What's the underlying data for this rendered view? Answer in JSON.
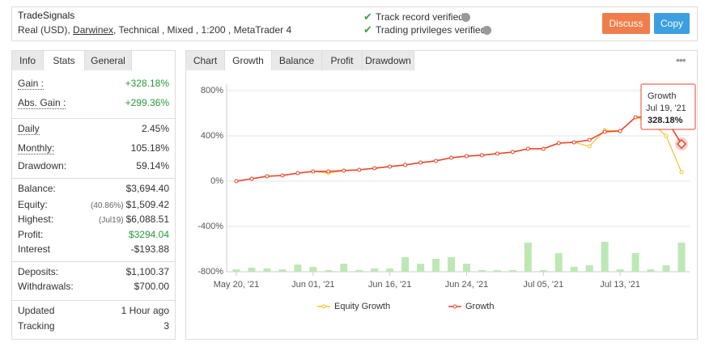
{
  "header": {
    "title": "TradeSignals",
    "account_prefix": "Real (USD),",
    "broker": "Darwinex",
    "account_suffix": ", Technical , Mixed , 1:200 , MetaTrader 4",
    "verifications": [
      "Track record verified",
      "Trading privileges verified"
    ],
    "buttons": [
      "Discuss",
      "Copy"
    ]
  },
  "left_tabs": {
    "items": [
      "Info",
      "Stats",
      "General"
    ],
    "active": 1
  },
  "stats": [
    [
      {
        "label": "Gain :",
        "value": "+328.18%",
        "color": "#2a9a3a",
        "underline": true
      },
      {
        "label": "Abs. Gain :",
        "value": "+299.36%",
        "color": "#2a9a3a",
        "underline": true
      }
    ],
    [
      {
        "label": "Daily",
        "value": "2.45%",
        "underline": true
      },
      {
        "label": "Monthly:",
        "value": "105.18%",
        "underline": true
      },
      {
        "label": "Drawdown:",
        "value": "59.14%"
      }
    ],
    [
      {
        "label": "Balance:",
        "value": "$3,694.40"
      },
      {
        "label": "Equity:",
        "note": "(40.86%)",
        "value": "$1,509.42"
      },
      {
        "label": "Highest:",
        "note": "(Jul19)",
        "value": "$6,088.51"
      },
      {
        "label": "Profit:",
        "value": "$3294.04",
        "color": "#2a9a3a"
      },
      {
        "label": "Interest",
        "value": "-$193.88"
      }
    ],
    [
      {
        "label": "Deposits:",
        "value": "$1,100.37"
      },
      {
        "label": "Withdrawals:",
        "value": "$700.00"
      }
    ],
    [
      {
        "label": "Updated",
        "value": "1 Hour ago"
      },
      {
        "label": "Tracking",
        "value": "3"
      }
    ]
  ],
  "chart_tabs": {
    "items": [
      "Chart",
      "Growth",
      "Balance",
      "Profit",
      "Drawdown"
    ],
    "active": 1
  },
  "chart_data": {
    "type": "line",
    "categories": [
      "May 20, '21",
      null,
      null,
      null,
      null,
      "Jun 01, '21",
      null,
      null,
      null,
      null,
      "Jun 16, '21",
      null,
      null,
      null,
      null,
      "Jun 24, '21",
      null,
      null,
      null,
      null,
      "Jul 05, '21",
      null,
      null,
      null,
      null,
      "Jul 13, '21",
      null,
      null,
      null,
      null
    ],
    "ylim": [
      -800,
      800
    ],
    "yticks": [
      {
        "value": 800,
        "label": "800%"
      },
      {
        "value": 400,
        "label": "400%"
      },
      {
        "value": 0,
        "label": "0%"
      },
      {
        "value": -400,
        "label": "-400%"
      },
      {
        "value": -800,
        "label": "-800%"
      }
    ],
    "grid": true,
    "series": [
      {
        "name": "Equity Growth",
        "color": "#f5c02c",
        "values": [
          0,
          21,
          43,
          50,
          71,
          86,
          71,
          93,
          100,
          114,
          129,
          143,
          164,
          179,
          207,
          221,
          229,
          243,
          257,
          286,
          286,
          336,
          343,
          307,
          450,
          443,
          564,
          520,
          400,
          79
        ]
      },
      {
        "name": "Growth",
        "color": "#e8452c",
        "values": [
          0,
          21,
          43,
          50,
          71,
          86,
          86,
          93,
          100,
          114,
          129,
          143,
          164,
          179,
          207,
          221,
          229,
          243,
          257,
          286,
          286,
          336,
          343,
          364,
          436,
          443,
          564,
          571,
          550,
          328.18
        ]
      }
    ],
    "bars": {
      "color": "#bde8b5",
      "values": [
        21,
        36,
        29,
        21,
        64,
        43,
        14,
        71,
        14,
        29,
        29,
        129,
        71,
        114,
        129,
        71,
        14,
        14,
        14,
        257,
        14,
        164,
        43,
        57,
        264,
        21,
        164,
        21,
        57,
        257
      ]
    },
    "tooltip_date": "Jul 19, '21",
    "tooltip_label": "328.18%"
  }
}
